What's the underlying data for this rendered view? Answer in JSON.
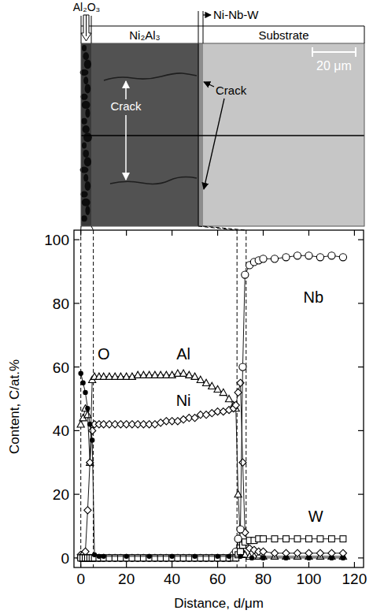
{
  "micrograph": {
    "layers": [
      "Al₂O₃",
      "Ni₂Al₃",
      "Ni-Nb-W",
      "Substrate"
    ],
    "scale_bar": "20 μm",
    "cracks": [
      "Crack",
      "Crack"
    ]
  },
  "chart_data": {
    "type": "line",
    "x_label": "Distance, d/μm",
    "y_label": "Content, C/at.%",
    "xlim": [
      -3,
      124
    ],
    "xticks": [
      0,
      20,
      40,
      60,
      80,
      100,
      120
    ],
    "ylim": [
      -3,
      103
    ],
    "yticks": [
      0,
      20,
      40,
      60,
      80,
      100
    ],
    "grid": false,
    "boundaries": [
      0,
      5.5,
      68.5,
      72.5
    ],
    "series": [
      {
        "name": "Al",
        "color": "#000000",
        "marker": "triangle",
        "line_style": "solid",
        "x": [
          0,
          1,
          2,
          3,
          4,
          5,
          6,
          8,
          10,
          12.5,
          15,
          17.5,
          20,
          22.5,
          25,
          27.5,
          30,
          32.5,
          35,
          37.5,
          40,
          42.5,
          45,
          47.5,
          50,
          52.5,
          55,
          57.5,
          60,
          62.5,
          65,
          67,
          68,
          69,
          70,
          71,
          72,
          74,
          76,
          78,
          80,
          85,
          90,
          95,
          100,
          105,
          110,
          115
        ],
        "values": [
          42,
          44,
          47,
          45,
          30,
          56,
          57,
          57,
          57,
          57,
          57,
          57,
          57,
          57,
          57.5,
          57.5,
          57.5,
          57.5,
          57.5,
          57.5,
          57.5,
          58,
          58,
          57.5,
          57,
          56,
          55,
          54,
          53,
          52,
          50,
          48,
          47,
          20,
          5,
          2,
          1,
          0.5,
          0.5,
          0.5,
          0.5,
          0.5,
          0.5,
          0.5,
          0.5,
          0.5,
          0.5,
          0.5
        ]
      },
      {
        "name": "Ni",
        "color": "#000000",
        "marker": "diamond",
        "line_style": "solid",
        "x": [
          0,
          1,
          2,
          3,
          4,
          5,
          6,
          8,
          10,
          12.5,
          15,
          17.5,
          20,
          22.5,
          25,
          27.5,
          30,
          32.5,
          35,
          37.5,
          40,
          42.5,
          45,
          47.5,
          50,
          52.5,
          55,
          57.5,
          60,
          62.5,
          65,
          67,
          68,
          69,
          70,
          71,
          72,
          74,
          76,
          78,
          80,
          85,
          90,
          95,
          100,
          105,
          110,
          115
        ],
        "values": [
          1,
          1,
          2,
          15,
          30,
          40,
          42,
          42,
          42,
          42,
          42,
          42,
          42,
          42,
          42,
          42,
          42,
          42,
          42.5,
          43,
          43,
          43,
          43.5,
          44,
          44,
          45,
          45,
          45.5,
          46,
          46,
          46.5,
          47,
          48,
          52,
          55,
          30,
          8,
          3,
          2.5,
          2,
          2,
          1.5,
          1.5,
          1.5,
          1.5,
          1.5,
          1.5,
          1.5
        ]
      },
      {
        "name": "Nb",
        "color": "#000000",
        "marker": "circle",
        "line_style": "solid",
        "x": [
          0,
          1,
          2,
          3,
          4,
          5,
          6,
          8,
          10,
          12.5,
          15,
          17.5,
          20,
          22.5,
          25,
          27.5,
          30,
          32.5,
          35,
          37.5,
          40,
          42.5,
          45,
          47.5,
          50,
          52.5,
          55,
          57.5,
          60,
          62.5,
          65,
          67,
          68,
          69,
          70,
          71,
          72,
          74,
          76,
          78,
          80,
          85,
          90,
          95,
          100,
          105,
          110,
          115
        ],
        "values": [
          0,
          0,
          0,
          0,
          0,
          0,
          0,
          0,
          0,
          0,
          0,
          0,
          0,
          0,
          0,
          0,
          0,
          0,
          0,
          0,
          0,
          0,
          0,
          0,
          0,
          0,
          0,
          0,
          0,
          0,
          0,
          1,
          2,
          6,
          9,
          60,
          89,
          92,
          93,
          93.5,
          94,
          94,
          94.5,
          95,
          95,
          94.5,
          95,
          94.5
        ]
      },
      {
        "name": "W",
        "color": "#000000",
        "marker": "square",
        "line_style": "solid",
        "x": [
          0,
          1,
          2,
          3,
          4,
          5,
          6,
          8,
          10,
          12.5,
          15,
          17.5,
          20,
          22.5,
          25,
          27.5,
          30,
          32.5,
          35,
          37.5,
          40,
          42.5,
          45,
          47.5,
          50,
          52.5,
          55,
          57.5,
          60,
          62.5,
          65,
          67,
          68,
          69,
          70,
          71,
          72,
          74,
          76,
          78,
          80,
          85,
          90,
          95,
          100,
          105,
          110,
          115
        ],
        "values": [
          0,
          0,
          0,
          0,
          0,
          0,
          0,
          0,
          0,
          0,
          0,
          0,
          0,
          0,
          0,
          0,
          0,
          0,
          0,
          0,
          0,
          0,
          0,
          0,
          0,
          0,
          0,
          0,
          0,
          0,
          0,
          0,
          0,
          1,
          2,
          4,
          5,
          5.5,
          5.5,
          6,
          6,
          6,
          6,
          6,
          6,
          6,
          6,
          6
        ]
      },
      {
        "name": "O",
        "color": "#000000",
        "marker": "dot",
        "line_style": "solid",
        "x": [
          0,
          1,
          2,
          3,
          4,
          5,
          6,
          8,
          10,
          20,
          30,
          40,
          50,
          60,
          65,
          70,
          75,
          80,
          90,
          100,
          110,
          115
        ],
        "values": [
          58,
          55,
          52,
          47,
          42,
          37,
          1,
          0.5,
          0.5,
          0.5,
          0.5,
          0.5,
          0.5,
          0.5,
          0.5,
          0.5,
          0,
          0,
          0,
          0,
          0,
          0
        ]
      }
    ]
  }
}
